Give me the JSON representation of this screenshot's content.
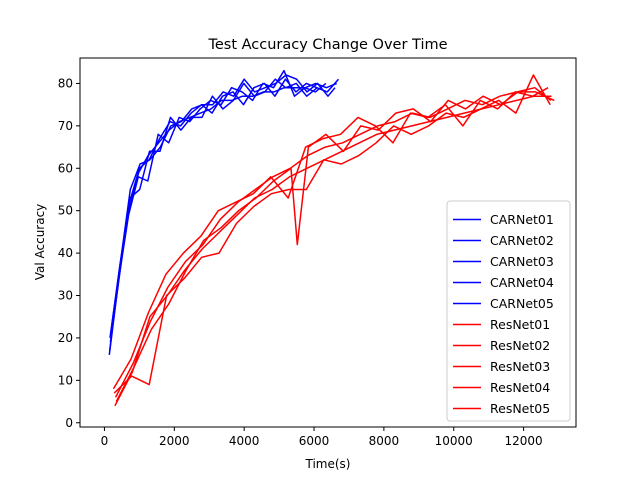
{
  "chart_data": {
    "type": "line",
    "title": "Test Accuracy Change Over Time",
    "xlabel": "Time(s)",
    "ylabel": "Val Accuracy",
    "xlim": [
      -700,
      13500
    ],
    "ylim": [
      -1,
      86
    ],
    "xticks": [
      0,
      2000,
      4000,
      6000,
      8000,
      10000,
      12000
    ],
    "yticks": [
      0,
      10,
      20,
      30,
      40,
      50,
      60,
      70,
      80
    ],
    "grid": false,
    "legend_position": "lower right",
    "colors": {
      "CARNet": "#0000ff",
      "ResNet": "#ff0000"
    },
    "series": [
      {
        "name": "CARNet01",
        "color": "#0000ff",
        "x": [
          150,
          420,
          700,
          980,
          1250,
          1550,
          1850,
          2150,
          2450,
          2750,
          3050,
          3350,
          3650,
          3950,
          4250,
          4550,
          4850,
          5150,
          5450,
          5750,
          6050,
          6350,
          6650
        ],
        "y": [
          17,
          35,
          50,
          59,
          63,
          66,
          69,
          71,
          72,
          73,
          74,
          76,
          76,
          77,
          77,
          78,
          78,
          79,
          79,
          79,
          80,
          79,
          80
        ]
      },
      {
        "name": "CARNet02",
        "color": "#0000ff",
        "x": [
          160,
          440,
          720,
          1000,
          1280,
          1580,
          1880,
          2180,
          2480,
          2780,
          3080,
          3380,
          3680,
          3980,
          4280,
          4580,
          4880,
          5180,
          5480,
          5780,
          6080,
          6380,
          6700
        ],
        "y": [
          20,
          37,
          52,
          60,
          62,
          67,
          71,
          70,
          73,
          75,
          73,
          77,
          78,
          75,
          79,
          80,
          77,
          81,
          78,
          80,
          79,
          78,
          81
        ]
      },
      {
        "name": "CARNet03",
        "color": "#0000ff",
        "x": [
          140,
          410,
          690,
          970,
          1240,
          1540,
          1840,
          2140,
          2440,
          2740,
          3040,
          3340,
          3640,
          3940,
          4240,
          4540,
          4840,
          5140,
          5440,
          5740,
          6040,
          6340
        ],
        "y": [
          16,
          34,
          49,
          58,
          57,
          68,
          66,
          72,
          71,
          74,
          76,
          75,
          79,
          78,
          76,
          80,
          79,
          83,
          77,
          79,
          78,
          80
        ]
      },
      {
        "name": "CARNet04",
        "color": "#0000ff",
        "x": [
          170,
          450,
          730,
          1010,
          1290,
          1590,
          1890,
          2190,
          2490,
          2790,
          3090,
          3390,
          3690,
          3990,
          4290,
          4590,
          4890,
          5190,
          5490,
          5790,
          6090
        ],
        "y": [
          19,
          36,
          53,
          55,
          64,
          64,
          72,
          69,
          72,
          72,
          77,
          74,
          76,
          80,
          77,
          78,
          81,
          79,
          80,
          77,
          79
        ]
      },
      {
        "name": "CARNet05",
        "color": "#0000ff",
        "x": [
          180,
          460,
          740,
          1020,
          1300,
          1600,
          1900,
          2200,
          2500,
          2800,
          3100,
          3400,
          3700,
          4000,
          4300,
          4600,
          4900,
          5200,
          5500,
          5800,
          6100,
          6400,
          6600
        ],
        "y": [
          21,
          38,
          55,
          61,
          62,
          65,
          70,
          71,
          74,
          75,
          75,
          78,
          77,
          81,
          78,
          79,
          80,
          82,
          81,
          78,
          80,
          77,
          79
        ]
      },
      {
        "name": "ResNet01",
        "color": "#ff0000",
        "x": [
          300,
          800,
          1300,
          1800,
          2300,
          2800,
          3300,
          3800,
          4300,
          4800,
          5300,
          5800,
          6300,
          6800,
          7300,
          7800,
          8300,
          8800,
          9300,
          9800,
          10300,
          10800,
          11300,
          11800,
          12300,
          12800
        ],
        "y": [
          4,
          12,
          25,
          30,
          36,
          41,
          45,
          49,
          53,
          55,
          58,
          60,
          62,
          64,
          66,
          68,
          69,
          70,
          71,
          72,
          73,
          74,
          75,
          76,
          77,
          77
        ]
      },
      {
        "name": "ResNet02",
        "color": "#ff0000",
        "x": [
          320,
          820,
          1320,
          1820,
          2320,
          2820,
          3320,
          3820,
          4320,
          4820,
          5320,
          5820,
          6320,
          6820,
          7320,
          7820,
          8320,
          8820,
          9320,
          9820,
          10320,
          10820,
          11320,
          11820,
          12320,
          12780
        ],
        "y": [
          6,
          14,
          24,
          32,
          38,
          42,
          48,
          52,
          55,
          58,
          60,
          63,
          65,
          66,
          68,
          70,
          71,
          73,
          72,
          74,
          76,
          75,
          77,
          78,
          79,
          76
        ]
      },
      {
        "name": "ResNet03",
        "color": "#ff0000",
        "x": [
          280,
          780,
          1280,
          1780,
          2280,
          2780,
          3280,
          3780,
          4280,
          4780,
          5280,
          5780,
          6280,
          6780,
          7280,
          7780,
          8280,
          8780,
          9280,
          9780,
          10280,
          10780,
          11280,
          11780,
          12280,
          12760
        ],
        "y": [
          7,
          11,
          9,
          30,
          34,
          39,
          40,
          47,
          51,
          54,
          55,
          55,
          62,
          61,
          63,
          66,
          70,
          68,
          70,
          73,
          72,
          74,
          76,
          73,
          82,
          75
        ]
      },
      {
        "name": "ResNet04",
        "color": "#ff0000",
        "x": [
          340,
          840,
          1340,
          1840,
          2340,
          2840,
          3340,
          3840,
          4340,
          4840,
          5340,
          5520,
          5840,
          6340,
          6840,
          7340,
          7840,
          8340,
          8840,
          9340,
          9840,
          10340,
          10840,
          11340,
          11840,
          12340,
          12880
        ],
        "y": [
          5,
          13,
          22,
          28,
          36,
          43,
          46,
          50,
          53,
          57,
          60,
          42,
          65,
          68,
          64,
          70,
          69,
          73,
          74,
          71,
          76,
          74,
          77,
          75,
          78,
          78,
          76
        ]
      },
      {
        "name": "ResNet05",
        "color": "#ff0000",
        "x": [
          260,
          760,
          1260,
          1760,
          2260,
          2760,
          3260,
          3760,
          4260,
          4760,
          5260,
          5760,
          6260,
          6760,
          7260,
          7760,
          8260,
          8760,
          9260,
          9760,
          10260,
          10760,
          11260,
          11760,
          12260,
          12700
        ],
        "y": [
          8,
          15,
          26,
          35,
          40,
          44,
          50,
          52,
          54,
          58,
          53,
          65,
          67,
          68,
          72,
          70,
          66,
          73,
          72,
          75,
          70,
          76,
          74,
          78,
          77,
          79
        ]
      }
    ]
  }
}
